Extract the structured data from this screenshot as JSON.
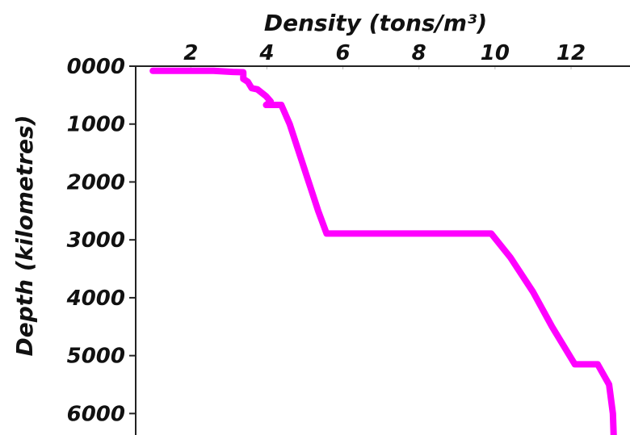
{
  "chart_data": {
    "type": "line",
    "title": "",
    "xlabel": "Density (tons/m³)",
    "ylabel": "Depth (kilometres)",
    "x_axis_position": "top",
    "y_axis_inverted": true,
    "xlim": [
      0.55,
      13.55
    ],
    "ylim": [
      0,
      6371
    ],
    "x_ticks": [
      2,
      4,
      6,
      8,
      10,
      12
    ],
    "x_tick_labels": [
      "2",
      "4",
      "6",
      "8",
      "10",
      "12"
    ],
    "y_ticks": [
      0,
      1000,
      2000,
      3000,
      4000,
      5000,
      6000
    ],
    "y_tick_labels": [
      "0000",
      "1000",
      "2000",
      "3000",
      "4000",
      "5000",
      "6000"
    ],
    "grid": false,
    "legend": false,
    "series": [
      {
        "color": "#ff00ff",
        "points": [
          {
            "x": 1.0,
            "y": 80
          },
          {
            "x": 2.6,
            "y": 80
          },
          {
            "x": 3.1,
            "y": 100
          },
          {
            "x": 3.38,
            "y": 105
          },
          {
            "x": 3.38,
            "y": 220
          },
          {
            "x": 3.5,
            "y": 270
          },
          {
            "x": 3.6,
            "y": 380
          },
          {
            "x": 3.75,
            "y": 400
          },
          {
            "x": 3.98,
            "y": 520
          },
          {
            "x": 4.1,
            "y": 610
          },
          {
            "x": 3.98,
            "y": 670
          },
          {
            "x": 4.38,
            "y": 670
          },
          {
            "x": 4.6,
            "y": 1000
          },
          {
            "x": 4.85,
            "y": 1500
          },
          {
            "x": 5.1,
            "y": 2000
          },
          {
            "x": 5.35,
            "y": 2500
          },
          {
            "x": 5.57,
            "y": 2891
          },
          {
            "x": 9.9,
            "y": 2891
          },
          {
            "x": 10.4,
            "y": 3300
          },
          {
            "x": 11.0,
            "y": 3900
          },
          {
            "x": 11.5,
            "y": 4500
          },
          {
            "x": 12.1,
            "y": 5150
          },
          {
            "x": 12.7,
            "y": 5150
          },
          {
            "x": 13.0,
            "y": 5500
          },
          {
            "x": 13.1,
            "y": 6000
          },
          {
            "x": 13.12,
            "y": 6371
          }
        ]
      }
    ]
  }
}
